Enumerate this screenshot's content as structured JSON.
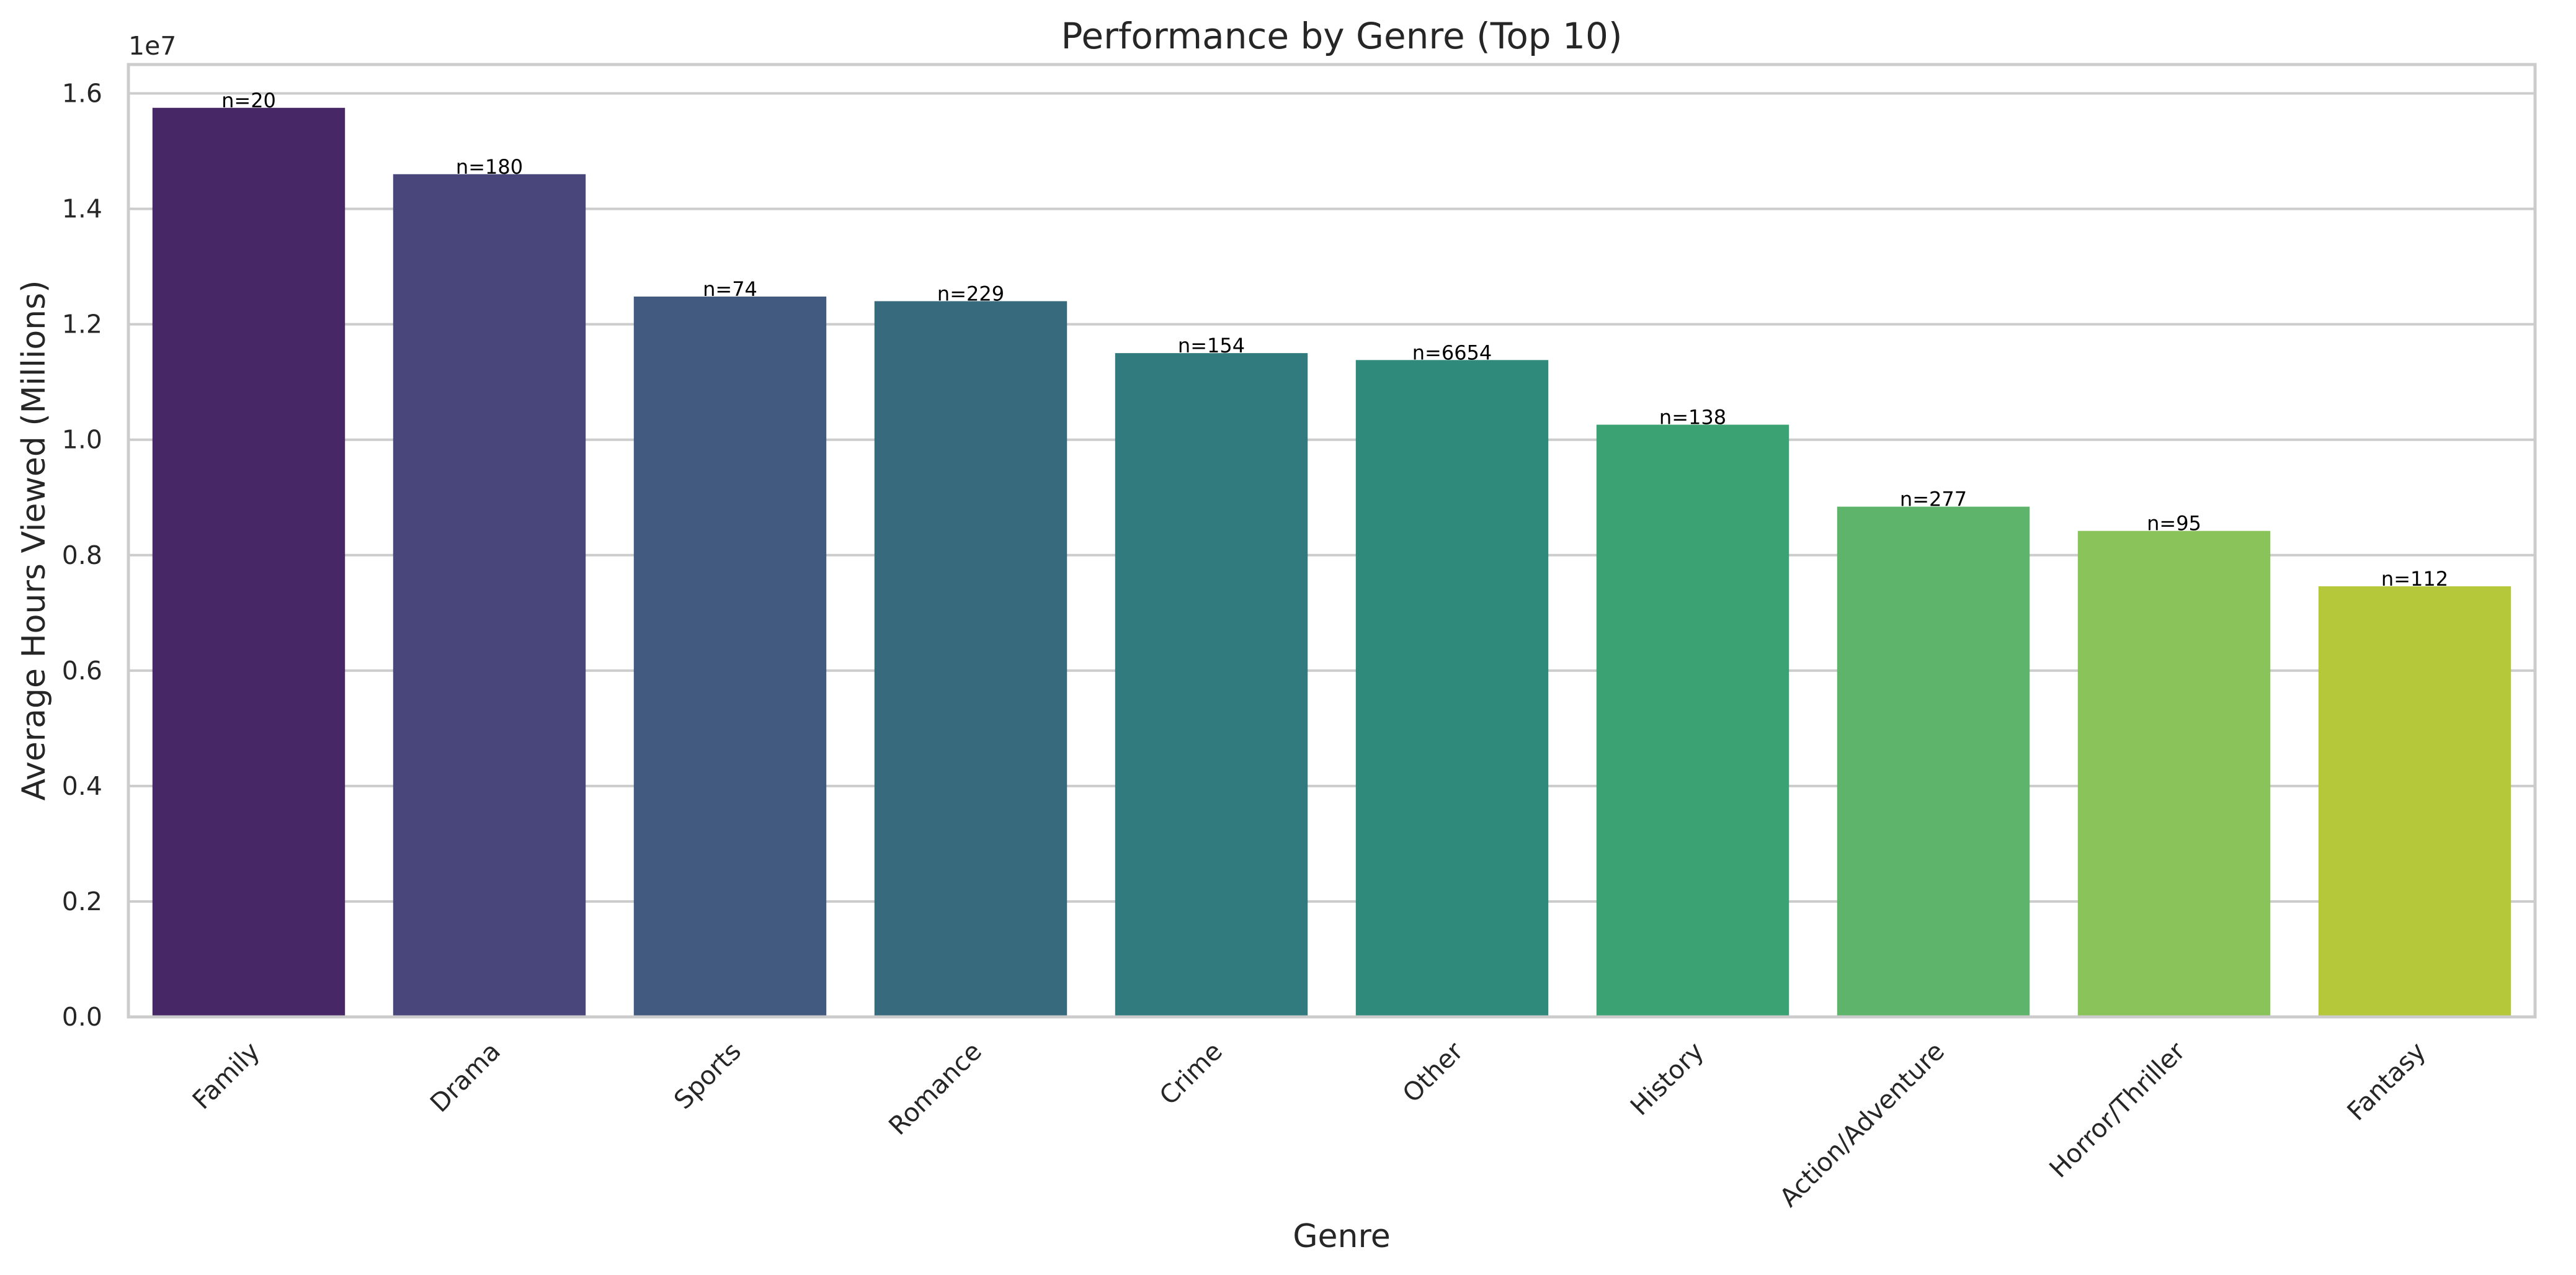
{
  "chart_data": {
    "type": "bar",
    "title": "Performance by Genre (Top 10)",
    "xlabel": "Genre",
    "ylabel": "Average Hours Viewed (Millions)",
    "y_multiplier_label": "1e7",
    "ylim": [
      0,
      16500000
    ],
    "yticks": [
      0,
      2000000,
      4000000,
      6000000,
      8000000,
      10000000,
      12000000,
      14000000,
      16000000
    ],
    "ytick_labels": [
      "0.0",
      "0.2",
      "0.4",
      "0.6",
      "0.8",
      "1.0",
      "1.2",
      "1.4",
      "1.6"
    ],
    "grid": true,
    "categories": [
      "Family",
      "Drama",
      "Sports",
      "Romance",
      "Crime",
      "Other",
      "History",
      "Action/Adventure",
      "Horror/Thriller",
      "Fantasy"
    ],
    "values": [
      15750000,
      14600000,
      12480000,
      12400000,
      11500000,
      11380000,
      10260000,
      8840000,
      8420000,
      7460000
    ],
    "bar_labels": [
      "n=20",
      "n=180",
      "n=74",
      "n=229",
      "n=154",
      "n=6654",
      "n=138",
      "n=277",
      "n=95",
      "n=112"
    ],
    "colors": [
      "#482767",
      "#48467a",
      "#425a7f",
      "#386a7e",
      "#317a7e",
      "#2f8a7b",
      "#3ba274",
      "#5fb46b",
      "#8ac35a",
      "#b4c83a"
    ]
  }
}
